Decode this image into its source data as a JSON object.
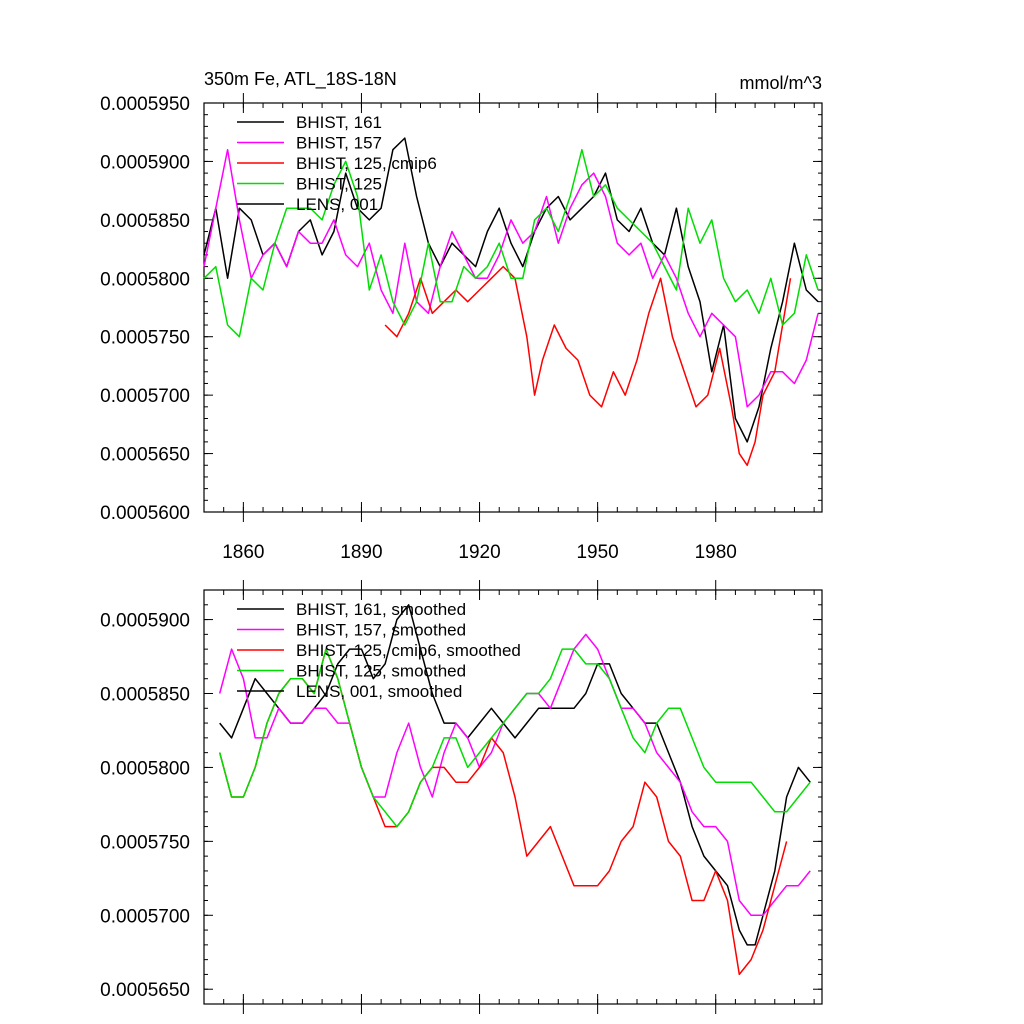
{
  "colors": {
    "background": "#ffffff",
    "axis": "#000000",
    "black": "#000000",
    "magenta": "#ff00ff",
    "red": "#ff0000",
    "green": "#00dd00"
  },
  "chart_data": [
    {
      "type": "line",
      "title_left": "350m Fe, ATL_18S-18N",
      "title_right": "mmol/m^3",
      "xlabel": "",
      "ylabel": "",
      "xlim": [
        1850,
        2007
      ],
      "ylim": [
        0.00056,
        0.000595
      ],
      "x_ticks": [
        1860,
        1890,
        1920,
        1950,
        1980
      ],
      "x_tick_labels": [
        "1860",
        "1890",
        "1920",
        "1950",
        "1980"
      ],
      "y_ticks": [
        0.00056,
        0.000565,
        0.00057,
        0.000575,
        0.00058,
        0.000585,
        0.00059,
        0.000595
      ],
      "y_tick_labels": [
        "0.0005600",
        "0.0005650",
        "0.0005700",
        "0.0005750",
        "0.0005800",
        "0.0005850",
        "0.0005900",
        "0.0005950"
      ],
      "grid": false,
      "legend_position": "top-left",
      "series": [
        {
          "name": "BHIST, 161",
          "color": "#000000",
          "x": [
            1850,
            1853,
            1856,
            1859,
            1862,
            1865,
            1868,
            1871,
            1874,
            1877,
            1880,
            1883,
            1886,
            1889,
            1892,
            1895,
            1898,
            1901,
            1904,
            1907,
            1910,
            1913,
            1916,
            1919,
            1922,
            1925,
            1928,
            1931,
            1934,
            1937,
            1940,
            1943,
            1946,
            1949,
            1952,
            1955,
            1958,
            1961,
            1964,
            1967,
            1970,
            1973,
            1976,
            1979,
            1982,
            1985,
            1988,
            1991,
            1994,
            1997,
            2000,
            2003,
            2006
          ],
          "values": [
            0.000582,
            0.000586,
            0.00058,
            0.000586,
            0.000585,
            0.000582,
            0.000583,
            0.000581,
            0.000584,
            0.000585,
            0.000582,
            0.000584,
            0.000589,
            0.000586,
            0.000585,
            0.000586,
            0.000591,
            0.000592,
            0.000587,
            0.000583,
            0.000581,
            0.000583,
            0.000582,
            0.000581,
            0.000584,
            0.000586,
            0.000583,
            0.000581,
            0.000584,
            0.000586,
            0.000587,
            0.000585,
            0.000586,
            0.000587,
            0.000589,
            0.000585,
            0.000584,
            0.000586,
            0.000583,
            0.000582,
            0.000586,
            0.000581,
            0.000578,
            0.000572,
            0.000576,
            0.000568,
            0.000566,
            0.000569,
            0.000574,
            0.000578,
            0.000583,
            0.000579,
            0.000578
          ]
        },
        {
          "name": "BHIST, 157",
          "color": "#ff00ff",
          "x": [
            1850,
            1853,
            1856,
            1859,
            1862,
            1865,
            1868,
            1871,
            1874,
            1877,
            1880,
            1883,
            1886,
            1889,
            1892,
            1895,
            1898,
            1901,
            1904,
            1907,
            1910,
            1913,
            1916,
            1919,
            1922,
            1925,
            1928,
            1931,
            1934,
            1937,
            1940,
            1943,
            1946,
            1949,
            1952,
            1955,
            1958,
            1961,
            1964,
            1967,
            1970,
            1973,
            1976,
            1979,
            1982,
            1985,
            1988,
            1991,
            1994,
            1997,
            2000,
            2003,
            2006
          ],
          "values": [
            0.000581,
            0.000586,
            0.000591,
            0.000585,
            0.00058,
            0.000582,
            0.000583,
            0.000581,
            0.000584,
            0.000583,
            0.000583,
            0.000585,
            0.000582,
            0.000581,
            0.000583,
            0.000579,
            0.000577,
            0.000583,
            0.000578,
            0.000577,
            0.000581,
            0.000584,
            0.000582,
            0.00058,
            0.00058,
            0.000582,
            0.000585,
            0.000583,
            0.000584,
            0.000587,
            0.000583,
            0.000586,
            0.000588,
            0.000589,
            0.000587,
            0.000583,
            0.000582,
            0.000583,
            0.00058,
            0.000582,
            0.00058,
            0.000577,
            0.000575,
            0.000577,
            0.000576,
            0.000575,
            0.000569,
            0.00057,
            0.000572,
            0.000572,
            0.000571,
            0.000573,
            0.000577
          ]
        },
        {
          "name": "BHIST, 125, cmip6",
          "color": "#ff0000",
          "x": [
            1896,
            1899,
            1902,
            1905,
            1908,
            1911,
            1914,
            1917,
            1920,
            1923,
            1926,
            1929,
            1932,
            1934,
            1936,
            1939,
            1942,
            1945,
            1948,
            1951,
            1954,
            1957,
            1960,
            1963,
            1966,
            1969,
            1972,
            1975,
            1978,
            1981,
            1984,
            1986,
            1988,
            1990,
            1992,
            1995,
            1997,
            1999
          ],
          "values": [
            0.000576,
            0.000575,
            0.000577,
            0.00058,
            0.000577,
            0.000578,
            0.000579,
            0.000578,
            0.000579,
            0.00058,
            0.000581,
            0.00058,
            0.000575,
            0.00057,
            0.000573,
            0.000576,
            0.000574,
            0.000573,
            0.00057,
            0.000569,
            0.000572,
            0.00057,
            0.000573,
            0.000577,
            0.00058,
            0.000575,
            0.000572,
            0.000569,
            0.00057,
            0.000574,
            0.000569,
            0.000565,
            0.000564,
            0.000566,
            0.00057,
            0.000572,
            0.000576,
            0.00058
          ]
        },
        {
          "name": "BHIST, 125",
          "color": "#00dd00",
          "x": [
            1850,
            1853,
            1856,
            1859,
            1862,
            1865,
            1868,
            1871,
            1874,
            1877,
            1880,
            1883,
            1886,
            1889,
            1892,
            1895,
            1898,
            1901,
            1904,
            1907,
            1910,
            1913,
            1916,
            1919,
            1922,
            1925,
            1928,
            1931,
            1934,
            1937,
            1940,
            1943,
            1946,
            1949,
            1952,
            1955,
            1958,
            1961,
            1964,
            1967,
            1970,
            1973,
            1976,
            1979,
            1982,
            1985,
            1988,
            1991,
            1994,
            1997,
            2000,
            2003,
            2006
          ],
          "values": [
            0.00058,
            0.000581,
            0.000576,
            0.000575,
            0.00058,
            0.000579,
            0.000583,
            0.000586,
            0.000586,
            0.000586,
            0.000585,
            0.000588,
            0.00059,
            0.000587,
            0.000579,
            0.000582,
            0.000578,
            0.000576,
            0.000578,
            0.000583,
            0.000578,
            0.000578,
            0.000581,
            0.00058,
            0.000581,
            0.000583,
            0.00058,
            0.00058,
            0.000585,
            0.000586,
            0.000584,
            0.000587,
            0.000591,
            0.000587,
            0.000588,
            0.000586,
            0.000585,
            0.000584,
            0.000583,
            0.000581,
            0.000579,
            0.000586,
            0.000583,
            0.000585,
            0.00058,
            0.000578,
            0.000579,
            0.000577,
            0.00058,
            0.000576,
            0.000577,
            0.000582,
            0.000579
          ]
        },
        {
          "name": "LENS, 001",
          "color": "#000000",
          "x": [],
          "values": []
        }
      ]
    },
    {
      "type": "line",
      "title_left": "",
      "title_right": "",
      "xlabel": "",
      "ylabel": "",
      "xlim": [
        1850,
        2007
      ],
      "ylim": [
        0.000564,
        0.000592
      ],
      "x_ticks": [
        1860,
        1890,
        1920,
        1950,
        1980
      ],
      "x_tick_labels": [],
      "y_ticks": [
        0.000565,
        0.00057,
        0.000575,
        0.00058,
        0.000585,
        0.00059
      ],
      "y_tick_labels": [
        "0.0005650",
        "0.0005700",
        "0.0005750",
        "0.0005800",
        "0.0005850",
        "0.0005900"
      ],
      "grid": false,
      "legend_position": "top-left",
      "series": [
        {
          "name": "BHIST, 161, smoothed",
          "color": "#000000",
          "x": [
            1854,
            1857,
            1860,
            1863,
            1866,
            1869,
            1872,
            1875,
            1878,
            1881,
            1884,
            1887,
            1890,
            1893,
            1896,
            1899,
            1902,
            1905,
            1908,
            1911,
            1914,
            1917,
            1920,
            1923,
            1926,
            1929,
            1932,
            1935,
            1938,
            1941,
            1944,
            1947,
            1950,
            1953,
            1956,
            1959,
            1962,
            1965,
            1968,
            1971,
            1974,
            1977,
            1980,
            1983,
            1986,
            1988,
            1990,
            1992,
            1995,
            1998,
            2001,
            2004
          ],
          "values": [
            0.000583,
            0.000582,
            0.000584,
            0.000586,
            0.000585,
            0.000584,
            0.000583,
            0.000583,
            0.000584,
            0.000585,
            0.000587,
            0.000588,
            0.000588,
            0.000586,
            0.000587,
            0.00059,
            0.000591,
            0.000588,
            0.000585,
            0.000583,
            0.000583,
            0.000582,
            0.000583,
            0.000584,
            0.000583,
            0.000582,
            0.000583,
            0.000584,
            0.000584,
            0.000584,
            0.000584,
            0.000585,
            0.000587,
            0.000587,
            0.000585,
            0.000584,
            0.000583,
            0.000583,
            0.000581,
            0.000579,
            0.000576,
            0.000574,
            0.000573,
            0.000572,
            0.000569,
            0.000568,
            0.000568,
            0.00057,
            0.000573,
            0.000578,
            0.00058,
            0.000579
          ]
        },
        {
          "name": "BHIST, 157, smoothed",
          "color": "#ff00ff",
          "x": [
            1854,
            1857,
            1860,
            1863,
            1866,
            1869,
            1872,
            1875,
            1878,
            1881,
            1884,
            1887,
            1890,
            1893,
            1896,
            1899,
            1902,
            1905,
            1908,
            1911,
            1914,
            1917,
            1920,
            1923,
            1926,
            1929,
            1932,
            1935,
            1938,
            1941,
            1944,
            1947,
            1950,
            1953,
            1956,
            1959,
            1962,
            1965,
            1968,
            1971,
            1974,
            1977,
            1980,
            1983,
            1986,
            1989,
            1992,
            1995,
            1998,
            2001,
            2004
          ],
          "values": [
            0.000585,
            0.000588,
            0.000586,
            0.000582,
            0.000582,
            0.000584,
            0.000583,
            0.000583,
            0.000584,
            0.000584,
            0.000583,
            0.000583,
            0.00058,
            0.000578,
            0.000578,
            0.000581,
            0.000583,
            0.00058,
            0.000578,
            0.000581,
            0.000583,
            0.000582,
            0.00058,
            0.000581,
            0.000583,
            0.000584,
            0.000585,
            0.000585,
            0.000584,
            0.000586,
            0.000588,
            0.000589,
            0.000588,
            0.000586,
            0.000584,
            0.000584,
            0.000583,
            0.000581,
            0.00058,
            0.000579,
            0.000577,
            0.000576,
            0.000576,
            0.000575,
            0.000571,
            0.00057,
            0.00057,
            0.000571,
            0.000572,
            0.000572,
            0.000573
          ]
        },
        {
          "name": "BHIST, 125, cmip6, smoothed",
          "color": "#ff0000",
          "x": [
            1854,
            1857,
            1860,
            1863,
            1866,
            1869,
            1872,
            1875,
            1878,
            1881,
            1884,
            1887,
            1890,
            1893,
            1896,
            1899,
            1902,
            1905,
            1908,
            1911,
            1914,
            1917,
            1920,
            1923,
            1926,
            1929,
            1932,
            1935,
            1938,
            1941,
            1944,
            1947,
            1950,
            1953,
            1956,
            1959,
            1962,
            1965,
            1968,
            1971,
            1974,
            1977,
            1980,
            1983,
            1986,
            1989,
            1992,
            1995,
            1998
          ],
          "values": [
            0.000581,
            0.000578,
            0.000578,
            0.00058,
            0.000583,
            0.000585,
            0.000586,
            0.000586,
            0.000585,
            0.000588,
            0.000586,
            0.000583,
            0.00058,
            0.000578,
            0.000576,
            0.000576,
            0.000577,
            0.000579,
            0.00058,
            0.00058,
            0.000579,
            0.000579,
            0.00058,
            0.000582,
            0.000581,
            0.000578,
            0.000574,
            0.000575,
            0.000576,
            0.000574,
            0.000572,
            0.000572,
            0.000572,
            0.000573,
            0.000575,
            0.000576,
            0.000579,
            0.000578,
            0.000575,
            0.000574,
            0.000571,
            0.000571,
            0.000573,
            0.000571,
            0.000566,
            0.000567,
            0.000569,
            0.000572,
            0.000575
          ]
        },
        {
          "name": "BHIST, 125, smoothed",
          "color": "#00dd00",
          "x": [
            1854,
            1857,
            1860,
            1863,
            1866,
            1869,
            1872,
            1875,
            1878,
            1881,
            1884,
            1887,
            1890,
            1893,
            1896,
            1899,
            1902,
            1905,
            1908,
            1911,
            1914,
            1917,
            1920,
            1923,
            1926,
            1929,
            1932,
            1935,
            1938,
            1941,
            1944,
            1947,
            1950,
            1953,
            1956,
            1959,
            1962,
            1965,
            1968,
            1971,
            1974,
            1977,
            1980,
            1983,
            1986,
            1989,
            1992,
            1995,
            1998,
            2001,
            2004
          ],
          "values": [
            0.000581,
            0.000578,
            0.000578,
            0.00058,
            0.000583,
            0.000585,
            0.000586,
            0.000586,
            0.000585,
            0.000588,
            0.000586,
            0.000583,
            0.00058,
            0.000578,
            0.000577,
            0.000576,
            0.000577,
            0.000579,
            0.00058,
            0.000582,
            0.000582,
            0.00058,
            0.000581,
            0.000582,
            0.000583,
            0.000584,
            0.000585,
            0.000585,
            0.000586,
            0.000588,
            0.000588,
            0.000587,
            0.000587,
            0.000586,
            0.000584,
            0.000582,
            0.000581,
            0.000583,
            0.000584,
            0.000584,
            0.000582,
            0.00058,
            0.000579,
            0.000579,
            0.000579,
            0.000579,
            0.000578,
            0.000577,
            0.000577,
            0.000578,
            0.000579
          ]
        },
        {
          "name": "LENS, 001, smoothed",
          "color": "#000000",
          "x": [],
          "values": []
        }
      ]
    }
  ]
}
